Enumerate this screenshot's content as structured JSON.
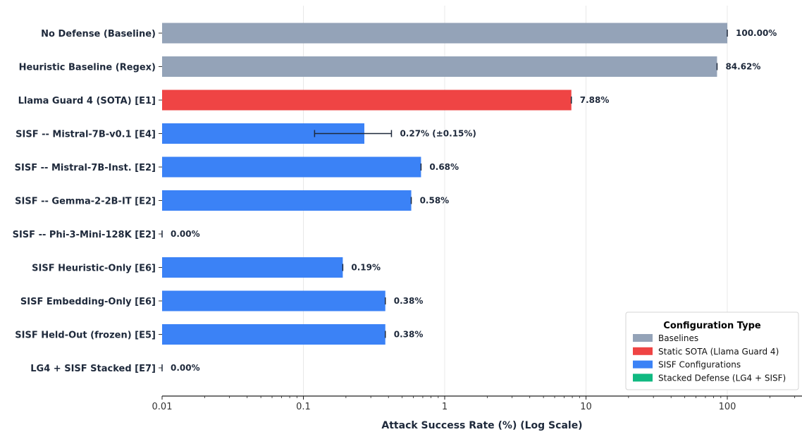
{
  "chart_data": {
    "type": "bar",
    "orientation": "horizontal",
    "x_scale": "log",
    "xlim": [
      0.01,
      300
    ],
    "x_ticks": [
      "0.01",
      "0.1",
      "1",
      "10",
      "100"
    ],
    "xlabel": "Attack Success Rate (%) (Log Scale)",
    "grid": "vertical",
    "categories": [
      "No Defense (Baseline)",
      "Heuristic Baseline (Regex)",
      "Llama Guard 4 (SOTA) [E1]",
      "SISF -- Mistral-7B-v0.1 [E4]",
      "SISF -- Mistral-7B-Inst. [E2]",
      "SISF -- Gemma-2-2B-IT [E2]",
      "SISF -- Phi-3-Mini-128K [E2]",
      "SISF Heuristic-Only [E6]",
      "SISF Embedding-Only [E6]",
      "SISF Held-Out (frozen) [E5]",
      "LG4 + SISF Stacked [E7]"
    ],
    "values": [
      100.0,
      84.62,
      7.88,
      0.27,
      0.68,
      0.58,
      0.0,
      0.19,
      0.38,
      0.38,
      0.0
    ],
    "errors": [
      0,
      0,
      0,
      0.15,
      0,
      0,
      0,
      0,
      0,
      0,
      0
    ],
    "value_labels": [
      "100.00%",
      "84.62%",
      "7.88%",
      "0.27% (±0.15%)",
      "0.68%",
      "0.58%",
      "0.00%",
      "0.19%",
      "0.38%",
      "0.38%",
      "0.00%"
    ],
    "groups": [
      "Baselines",
      "Baselines",
      "Static SOTA (Llama Guard 4)",
      "SISF Configurations",
      "SISF Configurations",
      "SISF Configurations",
      "SISF Configurations",
      "SISF Configurations",
      "SISF Configurations",
      "SISF Configurations",
      "Stacked Defense (LG4 + SISF)"
    ],
    "legend": {
      "title": "Configuration Type",
      "placement": "lower-right",
      "entries": [
        {
          "label": "Baselines",
          "color": "#94a3b8"
        },
        {
          "label": "Static SOTA (Llama Guard 4)",
          "color": "#ef4444"
        },
        {
          "label": "SISF Configurations",
          "color": "#3b82f6"
        },
        {
          "label": "Stacked Defense (LG4 + SISF)",
          "color": "#10b981"
        }
      ]
    }
  }
}
